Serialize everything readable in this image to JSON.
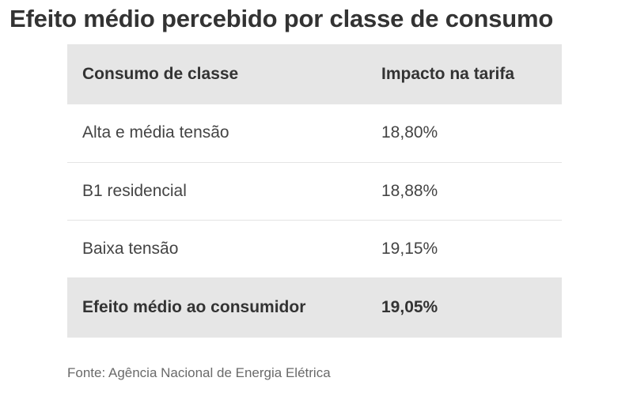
{
  "title": "Efeito médio percebido por classe de consumo",
  "source": "Fonte: Agência Nacional de Energia Elétrica",
  "chart_data": {
    "type": "table",
    "title": "Efeito médio percebido por classe de consumo",
    "columns": [
      "Consumo de classe",
      "Impacto na tarifa"
    ],
    "rows": [
      {
        "classe": "Alta e média tensão",
        "impacto": "18,80%"
      },
      {
        "classe": "B1 residencial",
        "impacto": "18,88%"
      },
      {
        "classe": "Baixa tensão",
        "impacto": "19,15%"
      }
    ],
    "total": {
      "classe": "Efeito médio ao consumidor",
      "impacto": "19,05%"
    },
    "values": [
      18.8,
      18.88,
      19.15,
      19.05
    ],
    "colors": {
      "header_bg": "#e6e6e6",
      "total_bg": "#e6e6e6",
      "row_bg": "#ffffff",
      "text": "#333333"
    }
  }
}
